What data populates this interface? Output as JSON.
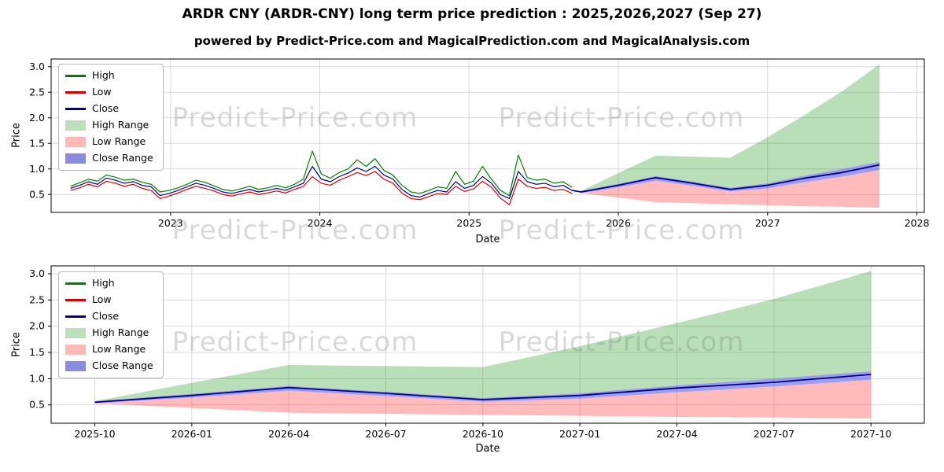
{
  "title": "ARDR CNY (ARDR-CNY) long term price prediction : 2025,2026,2027 (Sep 27)",
  "subtitle": "powered by Predict-Price.com and MagicalPrediction.com and MagicalAnalysis.com",
  "watermark": {
    "text": "Predict-Price.com"
  },
  "colors": {
    "high_line": "#008000",
    "low_line": "#d40000",
    "close_line": "#00008b",
    "high_band": "rgba(0,140,0,0.28)",
    "low_band": "rgba(255,30,30,0.30)",
    "close_band": "rgba(40,40,220,0.45)",
    "grid": "#d9d9d9",
    "axis": "#000000"
  },
  "legend": [
    {
      "label": "High",
      "type": "line",
      "color": "#008000"
    },
    {
      "label": "Low",
      "type": "line",
      "color": "#d40000"
    },
    {
      "label": "Close",
      "type": "line",
      "color": "#00008b"
    },
    {
      "label": "High Range",
      "type": "patch",
      "color": "#bcdfbc"
    },
    {
      "label": "Low Range",
      "type": "patch",
      "color": "#ffb9b9"
    },
    {
      "label": "Close Range",
      "type": "patch",
      "color": "#8b8be0"
    }
  ],
  "chart_data": [
    {
      "type": "line",
      "title": "",
      "xlabel": "Date",
      "ylabel": "Price",
      "xlim": [
        2022.2,
        2028.05
      ],
      "ylim": [
        0.15,
        3.15
      ],
      "yticks": [
        0.5,
        1.0,
        1.5,
        2.0,
        2.5,
        3.0
      ],
      "xticks": [
        {
          "v": 2023,
          "label": "2023"
        },
        {
          "v": 2024,
          "label": "2024"
        },
        {
          "v": 2025,
          "label": "2025"
        },
        {
          "v": 2026,
          "label": "2026"
        },
        {
          "v": 2027,
          "label": "2027"
        },
        {
          "v": 2028,
          "label": "2028"
        }
      ],
      "historical": {
        "x": [
          2022.33,
          2022.39,
          2022.45,
          2022.51,
          2022.57,
          2022.63,
          2022.69,
          2022.75,
          2022.81,
          2022.87,
          2022.93,
          2022.99,
          2023.05,
          2023.11,
          2023.17,
          2023.23,
          2023.29,
          2023.35,
          2023.41,
          2023.47,
          2023.53,
          2023.59,
          2023.65,
          2023.71,
          2023.77,
          2023.83,
          2023.89,
          2023.95,
          2024.01,
          2024.07,
          2024.13,
          2024.19,
          2024.25,
          2024.31,
          2024.37,
          2024.43,
          2024.49,
          2024.55,
          2024.61,
          2024.67,
          2024.73,
          2024.79,
          2024.85,
          2024.91,
          2024.97,
          2025.03,
          2025.09,
          2025.15,
          2025.21,
          2025.27,
          2025.33,
          2025.39,
          2025.45,
          2025.51,
          2025.57,
          2025.63,
          2025.69
        ],
        "high": [
          0.66,
          0.73,
          0.8,
          0.76,
          0.88,
          0.84,
          0.78,
          0.8,
          0.74,
          0.7,
          0.55,
          0.58,
          0.63,
          0.7,
          0.78,
          0.74,
          0.67,
          0.6,
          0.57,
          0.61,
          0.66,
          0.6,
          0.63,
          0.68,
          0.63,
          0.7,
          0.8,
          1.35,
          0.9,
          0.82,
          0.93,
          1.0,
          1.18,
          1.05,
          1.2,
          0.97,
          0.88,
          0.68,
          0.55,
          0.52,
          0.58,
          0.65,
          0.62,
          0.95,
          0.7,
          0.76,
          1.05,
          0.8,
          0.58,
          0.48,
          1.27,
          0.83,
          0.78,
          0.8,
          0.72,
          0.75,
          0.64
        ],
        "low": [
          0.58,
          0.63,
          0.7,
          0.65,
          0.76,
          0.72,
          0.66,
          0.7,
          0.62,
          0.58,
          0.42,
          0.47,
          0.53,
          0.6,
          0.66,
          0.62,
          0.57,
          0.5,
          0.47,
          0.51,
          0.55,
          0.5,
          0.53,
          0.57,
          0.53,
          0.6,
          0.66,
          0.85,
          0.72,
          0.68,
          0.78,
          0.85,
          0.93,
          0.87,
          0.95,
          0.8,
          0.72,
          0.53,
          0.42,
          0.4,
          0.46,
          0.52,
          0.5,
          0.66,
          0.56,
          0.61,
          0.76,
          0.64,
          0.43,
          0.3,
          0.8,
          0.66,
          0.62,
          0.64,
          0.58,
          0.6,
          0.52
        ],
        "close": [
          0.62,
          0.68,
          0.75,
          0.7,
          0.82,
          0.78,
          0.72,
          0.75,
          0.68,
          0.65,
          0.48,
          0.52,
          0.58,
          0.65,
          0.72,
          0.68,
          0.62,
          0.55,
          0.52,
          0.56,
          0.6,
          0.55,
          0.58,
          0.62,
          0.58,
          0.65,
          0.72,
          1.05,
          0.8,
          0.75,
          0.85,
          0.92,
          1.02,
          0.95,
          1.05,
          0.88,
          0.8,
          0.6,
          0.48,
          0.45,
          0.52,
          0.58,
          0.55,
          0.75,
          0.62,
          0.68,
          0.85,
          0.72,
          0.5,
          0.42,
          0.95,
          0.75,
          0.7,
          0.72,
          0.65,
          0.68,
          0.58
        ]
      },
      "forecast": {
        "x": [
          2025.75,
          2026.0,
          2026.25,
          2026.5,
          2026.75,
          2027.0,
          2027.25,
          2027.5,
          2027.75
        ],
        "labels": [
          "2025-10",
          "2026-01",
          "2026-04",
          "2026-07",
          "2026-10",
          "2027-01",
          "2027-04",
          "2027-07",
          "2027-10"
        ],
        "close": [
          0.55,
          0.68,
          0.83,
          0.72,
          0.6,
          0.68,
          0.82,
          0.93,
          1.08
        ],
        "close_upper": [
          0.57,
          0.71,
          0.86,
          0.75,
          0.63,
          0.72,
          0.87,
          1.0,
          1.14
        ],
        "close_lower": [
          0.53,
          0.64,
          0.77,
          0.67,
          0.56,
          0.62,
          0.74,
          0.85,
          0.98
        ],
        "high_upper": [
          0.57,
          0.92,
          1.26,
          1.24,
          1.22,
          1.62,
          2.06,
          2.52,
          3.05
        ],
        "low_lower": [
          0.53,
          0.44,
          0.35,
          0.33,
          0.31,
          0.29,
          0.27,
          0.26,
          0.24
        ]
      }
    },
    {
      "type": "line",
      "title": "",
      "xlabel": "Date",
      "ylabel": "Price",
      "xlim": [
        -0.45,
        8.55
      ],
      "ylim": [
        0.15,
        3.15
      ],
      "yticks": [
        0.5,
        1.0,
        1.5,
        2.0,
        2.5,
        3.0
      ],
      "xticks": [
        {
          "v": 0,
          "label": "2025-10"
        },
        {
          "v": 1,
          "label": "2026-01"
        },
        {
          "v": 2,
          "label": "2026-04"
        },
        {
          "v": 3,
          "label": "2026-07"
        },
        {
          "v": 4,
          "label": "2026-10"
        },
        {
          "v": 5,
          "label": "2027-01"
        },
        {
          "v": 6,
          "label": "2027-04"
        },
        {
          "v": 7,
          "label": "2027-07"
        },
        {
          "v": 8,
          "label": "2027-10"
        }
      ],
      "forecast": {
        "x": [
          0,
          1,
          2,
          3,
          4,
          5,
          6,
          7,
          8
        ],
        "labels": [
          "2025-10",
          "2026-01",
          "2026-04",
          "2026-07",
          "2026-10",
          "2027-01",
          "2027-04",
          "2027-07",
          "2027-10"
        ],
        "close": [
          0.55,
          0.68,
          0.83,
          0.72,
          0.6,
          0.68,
          0.82,
          0.93,
          1.08
        ],
        "close_upper": [
          0.57,
          0.71,
          0.86,
          0.75,
          0.63,
          0.72,
          0.87,
          1.0,
          1.14
        ],
        "close_lower": [
          0.53,
          0.64,
          0.77,
          0.67,
          0.56,
          0.62,
          0.74,
          0.85,
          0.98
        ],
        "high_upper": [
          0.57,
          0.92,
          1.26,
          1.24,
          1.22,
          1.62,
          2.06,
          2.52,
          3.05
        ],
        "low_lower": [
          0.53,
          0.44,
          0.35,
          0.33,
          0.31,
          0.29,
          0.27,
          0.26,
          0.24
        ]
      }
    }
  ]
}
